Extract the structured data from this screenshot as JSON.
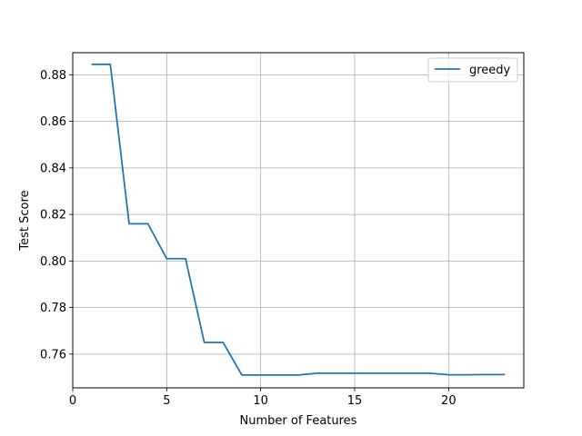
{
  "chart_data": {
    "type": "line",
    "title": "",
    "xlabel": "Number of Features",
    "ylabel": "Test Score",
    "xlim": [
      0,
      24
    ],
    "ylim": [
      0.7455,
      0.8895
    ],
    "xticks": [
      0,
      5,
      10,
      15,
      20
    ],
    "yticks": [
      0.76,
      0.78,
      0.8,
      0.82,
      0.84,
      0.86,
      0.88
    ],
    "grid": true,
    "legend_position": "top-right",
    "series": [
      {
        "name": "greedy",
        "color": "#1f77b4",
        "x": [
          1,
          2,
          3,
          4,
          5,
          6,
          7,
          8,
          9,
          10,
          11,
          12,
          13,
          14,
          15,
          16,
          17,
          18,
          19,
          20,
          21,
          22,
          23
        ],
        "y": [
          0.8845,
          0.8845,
          0.816,
          0.816,
          0.801,
          0.801,
          0.765,
          0.765,
          0.751,
          0.751,
          0.751,
          0.751,
          0.7518,
          0.7518,
          0.7518,
          0.7518,
          0.7518,
          0.7518,
          0.7518,
          0.7511,
          0.7511,
          0.7512,
          0.7512
        ]
      }
    ]
  }
}
